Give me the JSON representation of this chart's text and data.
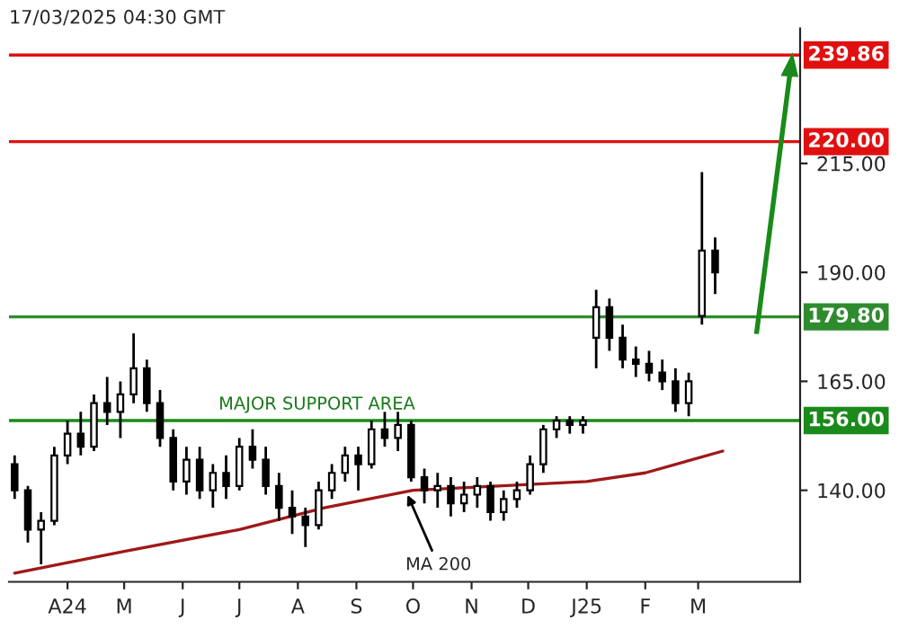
{
  "chart_data": {
    "type": "candlestick",
    "title": "17/03/2025 04:30 GMT",
    "x": [
      "2024-03-04",
      "2024-03-11",
      "2024-03-18",
      "2024-03-25",
      "2024-04-01",
      "2024-04-08",
      "2024-04-15",
      "2024-04-22",
      "2024-04-29",
      "2024-05-06",
      "2024-05-13",
      "2024-05-20",
      "2024-05-27",
      "2024-06-03",
      "2024-06-10",
      "2024-06-17",
      "2024-06-24",
      "2024-07-01",
      "2024-07-08",
      "2024-07-15",
      "2024-07-22",
      "2024-07-29",
      "2024-08-05",
      "2024-08-12",
      "2024-08-19",
      "2024-08-26",
      "2024-09-02",
      "2024-09-09",
      "2024-09-16",
      "2024-09-23",
      "2024-09-30",
      "2024-10-07",
      "2024-10-14",
      "2024-10-21",
      "2024-10-28",
      "2024-11-04",
      "2024-11-11",
      "2024-11-18",
      "2024-11-25",
      "2024-12-02",
      "2024-12-09",
      "2024-12-16",
      "2024-12-23",
      "2024-12-30",
      "2025-01-06",
      "2025-01-13",
      "2025-01-20",
      "2025-01-27",
      "2025-02-03",
      "2025-02-10",
      "2025-02-17",
      "2025-02-24",
      "2025-03-03",
      "2025-03-10"
    ],
    "ohlc": [
      [
        146,
        148,
        138,
        140
      ],
      [
        140,
        141,
        128,
        131
      ],
      [
        131,
        135,
        123,
        133
      ],
      [
        133,
        150,
        132,
        148
      ],
      [
        148,
        156,
        146,
        153
      ],
      [
        153,
        158,
        148,
        150
      ],
      [
        150,
        162,
        149,
        160
      ],
      [
        160,
        166,
        155,
        158
      ],
      [
        158,
        165,
        152,
        162
      ],
      [
        162,
        176,
        160,
        168
      ],
      [
        168,
        170,
        158,
        160
      ],
      [
        160,
        163,
        150,
        152
      ],
      [
        152,
        154,
        140,
        142
      ],
      [
        142,
        150,
        139,
        147
      ],
      [
        147,
        150,
        138,
        140
      ],
      [
        140,
        146,
        136,
        144
      ],
      [
        144,
        148,
        138,
        141
      ],
      [
        141,
        152,
        140,
        150
      ],
      [
        150,
        154,
        145,
        147
      ],
      [
        147,
        150,
        139,
        141
      ],
      [
        141,
        144,
        133,
        136
      ],
      [
        136,
        140,
        130,
        134
      ],
      [
        134,
        136,
        127,
        132
      ],
      [
        132,
        142,
        131,
        140
      ],
      [
        140,
        146,
        138,
        144
      ],
      [
        144,
        150,
        142,
        148
      ],
      [
        148,
        150,
        140,
        146
      ],
      [
        146,
        156,
        145,
        154
      ],
      [
        154,
        158,
        150,
        152
      ],
      [
        152,
        158,
        149,
        155
      ],
      [
        155,
        156,
        142,
        143
      ],
      [
        143,
        145,
        137,
        140
      ],
      [
        140,
        144,
        136,
        141
      ],
      [
        141,
        143,
        134,
        137
      ],
      [
        137,
        142,
        135,
        139
      ],
      [
        139,
        143,
        136,
        141
      ],
      [
        141,
        142,
        133,
        135
      ],
      [
        135,
        140,
        133,
        138
      ],
      [
        138,
        142,
        136,
        140
      ],
      [
        140,
        148,
        139,
        146
      ],
      [
        146,
        155,
        144,
        154
      ],
      [
        154,
        157,
        152,
        156
      ],
      [
        156,
        157,
        153,
        155
      ],
      [
        155,
        157,
        153,
        156
      ],
      [
        175,
        186,
        168,
        182
      ],
      [
        182,
        184,
        172,
        175
      ],
      [
        175,
        178,
        168,
        170
      ],
      [
        170,
        173,
        166,
        169
      ],
      [
        169,
        172,
        165,
        167
      ],
      [
        167,
        170,
        163,
        165
      ],
      [
        165,
        168,
        158,
        160
      ],
      [
        160,
        167,
        157,
        165
      ],
      [
        180,
        213,
        178,
        195
      ],
      [
        195,
        198,
        185,
        190
      ]
    ],
    "series": [
      {
        "type": "line",
        "color": "#a01818",
        "x": [
          "2024-03-04",
          "2024-05-01",
          "2024-07-01",
          "2024-08-15",
          "2024-10-01",
          "2024-11-15",
          "2025-01-01",
          "2025-02-01",
          "2025-03-14"
        ],
        "values": [
          121,
          126,
          131,
          136,
          140,
          141,
          142,
          144,
          149
        ]
      }
    ],
    "xlim": [
      "2024-03-01",
      "2025-04-24"
    ],
    "ylim": [
      119,
      246
    ],
    "xticks": [
      {
        "value": "2024-04-01",
        "label": "A24"
      },
      {
        "value": "2024-05-01",
        "label": "M"
      },
      {
        "value": "2024-06-01",
        "label": "J"
      },
      {
        "value": "2024-07-01",
        "label": "J"
      },
      {
        "value": "2024-08-01",
        "label": "A"
      },
      {
        "value": "2024-09-01",
        "label": "S"
      },
      {
        "value": "2024-10-01",
        "label": "O"
      },
      {
        "value": "2024-11-01",
        "label": "N"
      },
      {
        "value": "2024-12-01",
        "label": "D"
      },
      {
        "value": "2025-01-01",
        "label": "J25"
      },
      {
        "value": "2025-02-01",
        "label": "F"
      },
      {
        "value": "2025-03-01",
        "label": "M"
      }
    ],
    "yticks": [
      {
        "value": 140,
        "label": "140.00"
      },
      {
        "value": 165,
        "label": "165.00"
      },
      {
        "value": 190,
        "label": "190.00"
      },
      {
        "value": 215,
        "label": "215.00"
      }
    ],
    "ref_lines": [
      {
        "axis": "y",
        "value": 239.86,
        "label": "239.86",
        "color": "#e01010"
      },
      {
        "axis": "y",
        "value": 220,
        "label": "220.00",
        "color": "#e01010"
      },
      {
        "axis": "y",
        "value": 179.8,
        "label": "179.80",
        "color": "#2e8b2e"
      },
      {
        "axis": "y",
        "value": 156,
        "label": "156.00",
        "color": "#1a8a1a"
      }
    ],
    "annotations": [
      {
        "text": "MAJOR SUPPORT AREA",
        "x": "2024-06-20",
        "y": 156
      },
      {
        "text": "MA 200",
        "x": "2024-09-27",
        "y": 140
      }
    ],
    "grid": false
  }
}
